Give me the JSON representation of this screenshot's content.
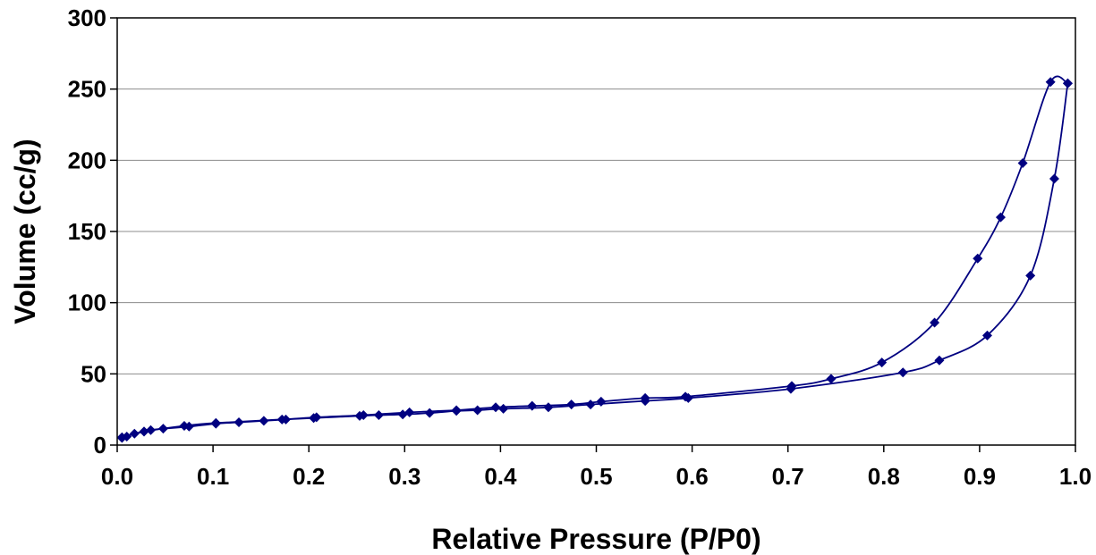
{
  "chart_data": {
    "type": "line",
    "title": "",
    "xlabel": "Relative Pressure (P/P0)",
    "ylabel": "Volume (cc/g)",
    "xlim": [
      0.0,
      1.0
    ],
    "ylim": [
      0,
      300
    ],
    "x_ticks": [
      "0.0",
      "0.1",
      "0.2",
      "0.3",
      "0.4",
      "0.5",
      "0.6",
      "0.7",
      "0.8",
      "0.9",
      "1.0"
    ],
    "y_ticks": [
      "0",
      "50",
      "100",
      "150",
      "200",
      "250",
      "300"
    ],
    "grid": "horizontal",
    "legend": "none",
    "series_color": "#000080",
    "marker": "diamond",
    "series": [
      {
        "points": [
          [
            0.005,
            5
          ],
          [
            0.01,
            6
          ],
          [
            0.018,
            8
          ],
          [
            0.028,
            9.5
          ],
          [
            0.035,
            10.5
          ],
          [
            0.048,
            11.5
          ],
          [
            0.075,
            13
          ],
          [
            0.103,
            15
          ],
          [
            0.127,
            16
          ],
          [
            0.153,
            17
          ],
          [
            0.176,
            18
          ],
          [
            0.205,
            19
          ],
          [
            0.253,
            20.5
          ],
          [
            0.273,
            21
          ],
          [
            0.298,
            21.5
          ],
          [
            0.326,
            22.5
          ],
          [
            0.354,
            24
          ],
          [
            0.376,
            24.5
          ],
          [
            0.403,
            25.5
          ],
          [
            0.45,
            26.5
          ],
          [
            0.494,
            28.5
          ],
          [
            0.551,
            31
          ],
          [
            0.596,
            33
          ],
          [
            0.703,
            39.5
          ],
          [
            0.82,
            51
          ],
          [
            0.858,
            59.5
          ],
          [
            0.908,
            77
          ],
          [
            0.953,
            119
          ],
          [
            0.978,
            187
          ],
          [
            0.992,
            254
          ]
        ]
      },
      {
        "points": [
          [
            0.992,
            254
          ],
          [
            0.974,
            255
          ],
          [
            0.945,
            198
          ],
          [
            0.922,
            160
          ],
          [
            0.898,
            131
          ],
          [
            0.853,
            86
          ],
          [
            0.798,
            58
          ],
          [
            0.745,
            46.5
          ],
          [
            0.704,
            41.5
          ],
          [
            0.593,
            34
          ],
          [
            0.551,
            33
          ],
          [
            0.505,
            30.5
          ],
          [
            0.474,
            28.5
          ],
          [
            0.433,
            27.5
          ],
          [
            0.395,
            26.5
          ],
          [
            0.354,
            24.5
          ],
          [
            0.305,
            23
          ],
          [
            0.257,
            21
          ],
          [
            0.208,
            19.5
          ],
          [
            0.172,
            18
          ],
          [
            0.103,
            15.5
          ],
          [
            0.07,
            13.5
          ],
          [
            0.028,
            9.5
          ],
          [
            0.005,
            5.5
          ]
        ]
      }
    ]
  }
}
